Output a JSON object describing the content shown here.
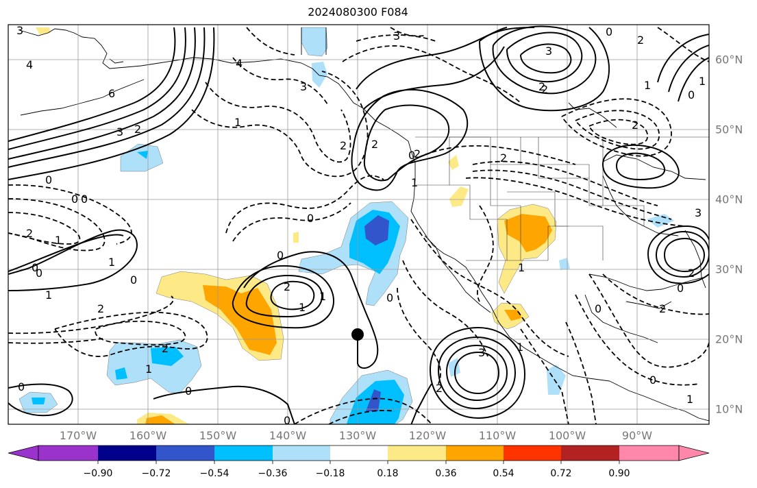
{
  "title": "2024080300 F084",
  "lat_labels": [
    "60°N",
    "50°N",
    "40°N",
    "30°N",
    "20°N",
    "10°N"
  ],
  "lon_labels": [
    "170°W",
    "160°W",
    "150°W",
    "140°W",
    "130°W",
    "120°W",
    "110°W",
    "100°W",
    "90°W"
  ],
  "colorbar": {
    "labels": [
      "−0.90",
      "−0.72",
      "−0.54",
      "−0.36",
      "−0.18",
      "0.18",
      "0.36",
      "0.54",
      "0.72",
      "0.90"
    ],
    "colors": [
      "#9933cc",
      "#00008b",
      "#3355cc",
      "#00bfff",
      "#aee0fa",
      "#ffffff",
      "#fdea86",
      "#ffa500",
      "#ff3300",
      "#b22222",
      "#ff88aa"
    ]
  },
  "contour_labels": [
    "3",
    "4",
    "6",
    "3",
    "2",
    "0",
    "0",
    "2",
    "1",
    "0",
    "1",
    "2",
    "3",
    "2",
    "1",
    "1",
    "0",
    "2",
    "2",
    "0",
    "2",
    "3",
    "2",
    "1",
    "4",
    "3",
    "2",
    "2",
    "2",
    "1",
    "0",
    "1",
    "0",
    "1",
    "2",
    "1",
    "2",
    "1",
    "0",
    "0",
    "3",
    "0",
    "0",
    "1",
    "0",
    "2",
    "0",
    "1",
    "0",
    "2",
    "1",
    "2",
    "3",
    "0",
    "0",
    "0",
    "0"
  ],
  "marker": "storm-center-dot"
}
